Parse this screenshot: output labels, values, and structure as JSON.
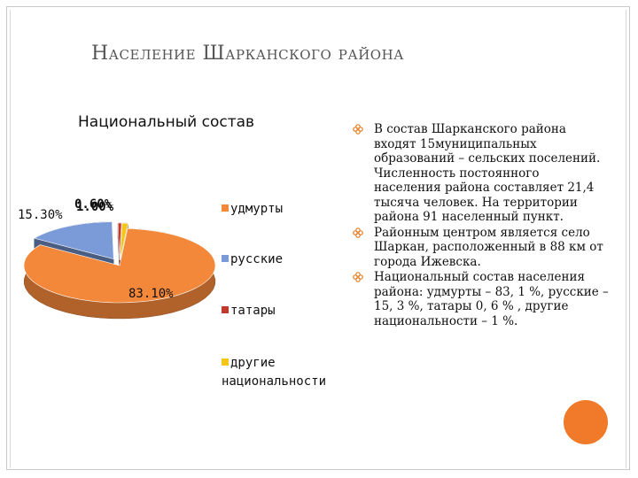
{
  "title": "Население Шарканского района",
  "subtitle": "Национальный состав",
  "chart_data": {
    "type": "pie",
    "style": "3d-exploded",
    "categories": [
      "удмурты",
      "русские",
      "татары",
      "другие национальности"
    ],
    "values": [
      83.1,
      15.3,
      0.6,
      1.0
    ],
    "colors": [
      "#f4883a",
      "#7b9bd8",
      "#c0392b",
      "#f5c518"
    ],
    "data_labels": [
      "83.10%",
      "15.30%",
      "0.60%",
      "1.00%"
    ],
    "legend_position": "right"
  },
  "legend": [
    {
      "label": "удмурты",
      "color": "#f4883a"
    },
    {
      "label": "русские",
      "color": "#7b9bd8"
    },
    {
      "label": "татары",
      "color": "#c0392b"
    },
    {
      "label": "другие национальности",
      "color": "#f5c518"
    }
  ],
  "bullets": [
    "В состав Шарканского района входят 15муниципальных образований – сельских поселений. Численность постоянного населения района составляет 21,4 тысяча человек. На территории района 91 населенный пункт.",
    "Районным центром является село Шаркан, расположенный в 88 км от города Ижевска.",
    "Национальный состав населения района: удмурты – 83, 1 %, русские – 15, 3 %, татары 0, 6 % , другие национальности – 1 %."
  ],
  "accent_color": "#f07a2a"
}
